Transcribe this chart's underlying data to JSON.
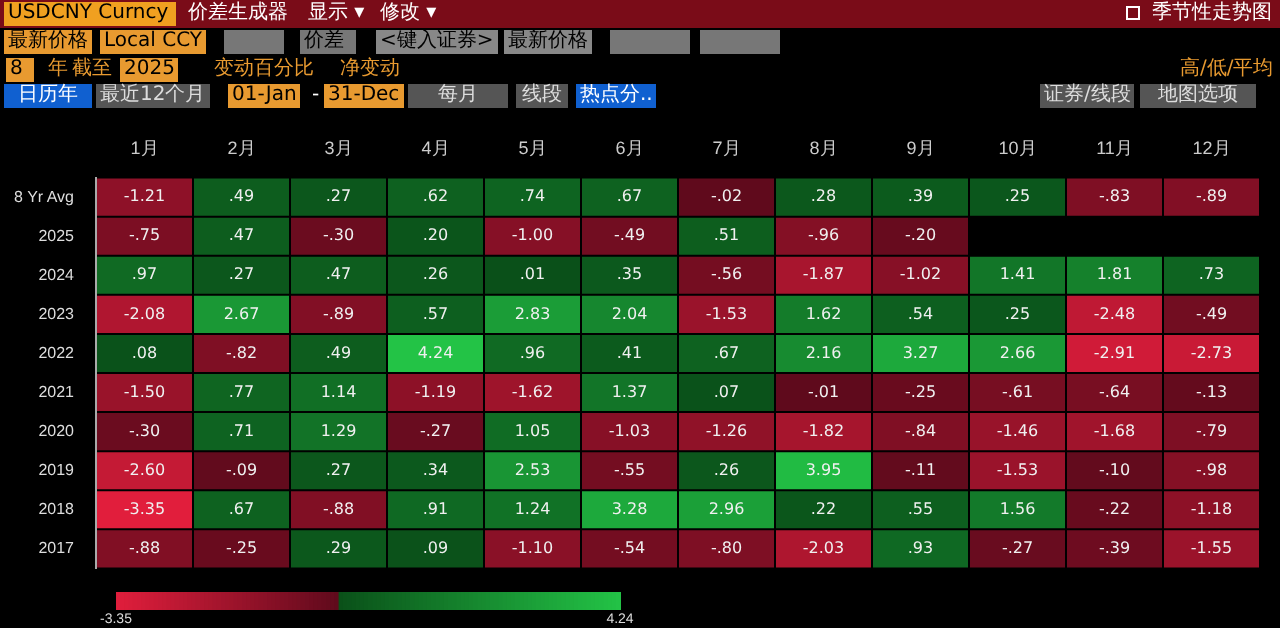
{
  "chart_data": {
    "type": "heatmap",
    "title": "USDCNY Curncy",
    "subtitle": "季节性走势图",
    "annotations": [
      "价差生成器",
      "显示 ▾",
      "修改 ▾",
      "最新价格",
      "Local CCY",
      "价差",
      "<键入证券>",
      "最新价格",
      "8",
      "年",
      "截至",
      "2025",
      "变动百分比",
      "净变动",
      "高/低/平均",
      "日历年",
      "最近12个月",
      "01-Jan",
      "-",
      "31-Dec",
      "每月",
      "线段",
      "热点分..",
      "证券/线段",
      "地图选项"
    ],
    "categories": [
      "1月",
      "2月",
      "3月",
      "4月",
      "5月",
      "6月",
      "7月",
      "8月",
      "9月",
      "10月",
      "11月",
      "12月"
    ],
    "y_categories": [
      "8 Yr Avg",
      "2025",
      "2024",
      "2023",
      "2022",
      "2021",
      "2020",
      "2019",
      "2018",
      "2017"
    ],
    "cells": [
      [
        -1.21,
        0.49,
        0.27,
        0.62,
        0.74,
        0.67,
        -0.02,
        0.28,
        0.39,
        0.25,
        -0.83,
        -0.89
      ],
      [
        -0.75,
        0.47,
        -0.3,
        0.2,
        -1.0,
        -0.49,
        0.51,
        -0.96,
        -0.2,
        null,
        null,
        null
      ],
      [
        0.97,
        0.27,
        0.47,
        0.26,
        0.01,
        0.35,
        -0.56,
        -1.87,
        -1.02,
        1.41,
        1.81,
        0.73
      ],
      [
        -2.08,
        2.67,
        -0.89,
        0.57,
        2.83,
        2.04,
        -1.53,
        1.62,
        0.54,
        0.25,
        -2.48,
        -0.49
      ],
      [
        0.08,
        -0.82,
        0.49,
        4.24,
        0.96,
        0.41,
        0.67,
        2.16,
        3.27,
        2.66,
        -2.91,
        -2.73
      ],
      [
        -1.5,
        0.77,
        1.14,
        -1.19,
        -1.62,
        1.37,
        0.07,
        -0.01,
        -0.25,
        -0.61,
        -0.64,
        -0.13
      ],
      [
        -0.3,
        0.71,
        1.29,
        -0.27,
        1.05,
        -1.03,
        -1.26,
        -1.82,
        -0.84,
        -1.46,
        -1.68,
        -0.79
      ],
      [
        -2.6,
        -0.09,
        0.27,
        0.34,
        2.53,
        -0.55,
        0.26,
        3.95,
        -0.11,
        -1.53,
        -0.1,
        -0.98
      ],
      [
        -3.35,
        0.67,
        -0.88,
        0.91,
        1.24,
        3.28,
        2.96,
        0.22,
        0.55,
        1.56,
        -0.22,
        -1.18
      ],
      [
        -0.88,
        -0.25,
        0.29,
        0.09,
        -1.1,
        -0.54,
        -0.8,
        -2.03,
        0.93,
        -0.27,
        -0.39,
        -1.55
      ]
    ],
    "cell_labels": [
      [
        "-1.21",
        ".49",
        ".27",
        ".62",
        ".74",
        ".67",
        "-.02",
        ".28",
        ".39",
        ".25",
        "-.83",
        "-.89"
      ],
      [
        "-.75",
        ".47",
        "-.30",
        ".20",
        "-1.00",
        "-.49",
        ".51",
        "-.96",
        "-.20",
        null,
        null,
        null
      ],
      [
        ".97",
        ".27",
        ".47",
        ".26",
        ".01",
        ".35",
        "-.56",
        "-1.87",
        "-1.02",
        "1.41",
        "1.81",
        ".73"
      ],
      [
        "-2.08",
        "2.67",
        "-.89",
        ".57",
        "2.83",
        "2.04",
        "-1.53",
        "1.62",
        ".54",
        ".25",
        "-2.48",
        "-.49"
      ],
      [
        ".08",
        "-.82",
        ".49",
        "4.24",
        ".96",
        ".41",
        ".67",
        "2.16",
        "3.27",
        "2.66",
        "-2.91",
        "-2.73"
      ],
      [
        "-1.50",
        ".77",
        "1.14",
        "-1.19",
        "-1.62",
        "1.37",
        ".07",
        "-.01",
        "-.25",
        "-.61",
        "-.64",
        "-.13"
      ],
      [
        "-.30",
        ".71",
        "1.29",
        "-.27",
        "1.05",
        "-1.03",
        "-1.26",
        "-1.82",
        "-.84",
        "-1.46",
        "-1.68",
        "-.79"
      ],
      [
        "-2.60",
        "-.09",
        ".27",
        ".34",
        "2.53",
        "-.55",
        ".26",
        "3.95",
        "-.11",
        "-1.53",
        "-.10",
        "-.98"
      ],
      [
        "-3.35",
        ".67",
        "-.88",
        ".91",
        "1.24",
        "3.28",
        "2.96",
        ".22",
        ".55",
        "1.56",
        "-.22",
        "-1.18"
      ],
      [
        "-.88",
        "-.25",
        ".29",
        ".09",
        "-1.10",
        "-.54",
        "-.80",
        "-2.03",
        ".93",
        "-.27",
        "-.39",
        "-1.55"
      ]
    ],
    "clim": [
      -3.35,
      4.24
    ],
    "cticks": [
      -3.35,
      4.24
    ],
    "legend": false
  }
}
